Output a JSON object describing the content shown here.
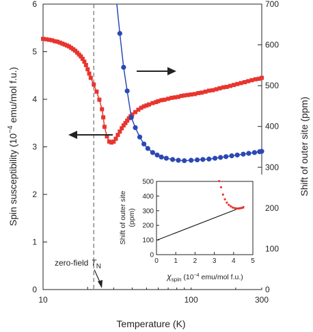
{
  "chart_data": [
    {
      "type": "scatter",
      "xlabel": "Temperature (K)",
      "xscale": "log",
      "xlim": [
        10,
        300
      ],
      "xticks": [
        "10",
        "100",
        "300"
      ],
      "ylabel": "Spin susceptibility (10⁻⁴ emu/mol f.u.)",
      "ylabel_parts": [
        "Spin susceptibility (10",
        "−4",
        " emu/mol f.u.)"
      ],
      "ylim": [
        0,
        6
      ],
      "yticks": [
        "0",
        "1",
        "2",
        "3",
        "4",
        "5",
        "6"
      ],
      "y2label": "Shift of outer site (ppm)",
      "y2lim": [
        0,
        700
      ],
      "y2ticks": [
        "0",
        "100",
        "200",
        "300",
        "400",
        "500",
        "600",
        "700"
      ],
      "annotation": {
        "text": "zero-field",
        "symbol": "T",
        "subscript": "N",
        "x": 22
      },
      "series": [
        {
          "axis": "left",
          "marker": "square",
          "color": "#e8352e",
          "points": [
            [
              10.0,
              5.27
            ],
            [
              10.5,
              5.26
            ],
            [
              11,
              5.25
            ],
            [
              11.5,
              5.24
            ],
            [
              12,
              5.22
            ],
            [
              12.5,
              5.21
            ],
            [
              13,
              5.19
            ],
            [
              13.5,
              5.17
            ],
            [
              14,
              5.15
            ],
            [
              14.5,
              5.13
            ],
            [
              15,
              5.11
            ],
            [
              15.5,
              5.08
            ],
            [
              16,
              5.05
            ],
            [
              16.5,
              5.02
            ],
            [
              17,
              4.98
            ],
            [
              17.5,
              4.94
            ],
            [
              18,
              4.9
            ],
            [
              18.5,
              4.85
            ],
            [
              19,
              4.79
            ],
            [
              19.5,
              4.72
            ],
            [
              20,
              4.63
            ],
            [
              20.5,
              4.54
            ],
            [
              21,
              4.45
            ],
            [
              22,
              4.31
            ],
            [
              23,
              4.16
            ],
            [
              24,
              3.99
            ],
            [
              25,
              3.79
            ],
            [
              25.5,
              3.62
            ],
            [
              26,
              3.42
            ],
            [
              27,
              3.22
            ],
            [
              28,
              3.11
            ],
            [
              29,
              3.09
            ],
            [
              30,
              3.11
            ],
            [
              31,
              3.17
            ],
            [
              32,
              3.25
            ],
            [
              33,
              3.32
            ],
            [
              34,
              3.39
            ],
            [
              35,
              3.45
            ],
            [
              36,
              3.5
            ],
            [
              37,
              3.55
            ],
            [
              38,
              3.6
            ],
            [
              39,
              3.64
            ],
            [
              40,
              3.68
            ],
            [
              42,
              3.73
            ],
            [
              44,
              3.78
            ],
            [
              46,
              3.82
            ],
            [
              48,
              3.85
            ],
            [
              50,
              3.87
            ],
            [
              52,
              3.89
            ],
            [
              55,
              3.92
            ],
            [
              58,
              3.94
            ],
            [
              60,
              3.96
            ],
            [
              63,
              3.98
            ],
            [
              66,
              3.99
            ],
            [
              70,
              4.01
            ],
            [
              74,
              4.03
            ],
            [
              78,
              4.04
            ],
            [
              82,
              4.05
            ],
            [
              86,
              4.07
            ],
            [
              90,
              4.08
            ],
            [
              95,
              4.09
            ],
            [
              100,
              4.1
            ],
            [
              106,
              4.11
            ],
            [
              112,
              4.13
            ],
            [
              118,
              4.14
            ],
            [
              125,
              4.16
            ],
            [
              132,
              4.18
            ],
            [
              140,
              4.19
            ],
            [
              148,
              4.21
            ],
            [
              156,
              4.23
            ],
            [
              165,
              4.25
            ],
            [
              174,
              4.26
            ],
            [
              184,
              4.28
            ],
            [
              194,
              4.3
            ],
            [
              205,
              4.32
            ],
            [
              217,
              4.34
            ],
            [
              230,
              4.36
            ],
            [
              243,
              4.38
            ],
            [
              257,
              4.4
            ],
            [
              272,
              4.42
            ],
            [
              287,
              4.43
            ],
            [
              300,
              4.45
            ]
          ]
        },
        {
          "axis": "right",
          "marker": "circle",
          "color": "#2b48b4",
          "points": [
            [
              33,
              628
            ],
            [
              35,
              545
            ],
            [
              37,
              487
            ],
            [
              39.5,
              422
            ],
            [
              42,
              397
            ],
            [
              45,
              374
            ],
            [
              48,
              357
            ],
            [
              51,
              346
            ],
            [
              55,
              336
            ],
            [
              59,
              330
            ],
            [
              63,
              325
            ],
            [
              68,
              322
            ],
            [
              75,
              319
            ],
            [
              82,
              317
            ],
            [
              90,
              316
            ],
            [
              100,
              317
            ],
            [
              110,
              318
            ],
            [
              120,
              319
            ],
            [
              132,
              320
            ],
            [
              145,
              322
            ],
            [
              158,
              324
            ],
            [
              172,
              326
            ],
            [
              188,
              328
            ],
            [
              205,
              330
            ],
            [
              225,
              332
            ],
            [
              245,
              334
            ],
            [
              268,
              336
            ],
            [
              290,
              338
            ],
            [
              300,
              339
            ]
          ],
          "curve_to": [
            [
              31.5,
              700
            ]
          ]
        }
      ]
    },
    {
      "type": "scatter",
      "inset": true,
      "xlabel_symbol": "χ",
      "xlabel_sub": "spin",
      "xlabel_rest": " (10⁻⁴ emu/mol f.u.)",
      "xlabel_rest_parts": [
        " (10",
        "−4",
        " emu/mol f.u.)"
      ],
      "ylabel_lines": [
        "Shift of outer site",
        "(ppm)"
      ],
      "xlim": [
        0,
        5
      ],
      "ylim": [
        0,
        500
      ],
      "xticks": [
        "0",
        "1",
        "2",
        "3",
        "4",
        "5"
      ],
      "yticks": [
        "0",
        "100",
        "200",
        "300",
        "400",
        "500"
      ],
      "points": [
        [
          3.25,
          502
        ],
        [
          3.35,
          460
        ],
        [
          3.45,
          410
        ],
        [
          3.55,
          378
        ],
        [
          3.65,
          355
        ],
        [
          3.75,
          340
        ],
        [
          3.85,
          330
        ],
        [
          3.95,
          322
        ],
        [
          4.05,
          318
        ],
        [
          4.15,
          316
        ],
        [
          4.25,
          315
        ],
        [
          4.3,
          316
        ],
        [
          4.35,
          317
        ],
        [
          4.4,
          318
        ],
        [
          4.45,
          320
        ],
        [
          4.5,
          322
        ]
      ],
      "fit_line": [
        [
          0,
          98
        ],
        [
          4.55,
          330
        ]
      ],
      "color": "#e8352e"
    }
  ]
}
